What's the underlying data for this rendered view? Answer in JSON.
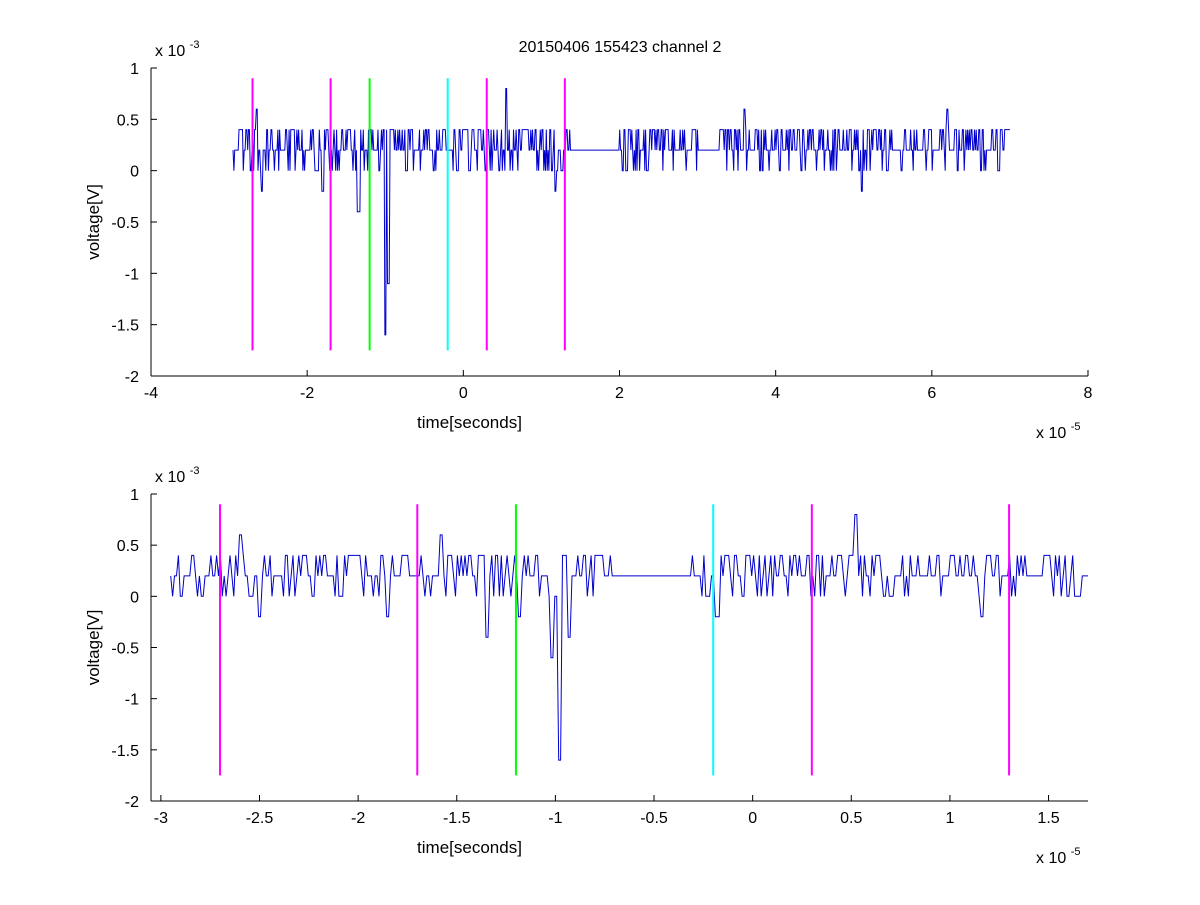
{
  "figure": {
    "title": "20150406 155423 channel 2"
  },
  "chart_data": [
    {
      "type": "line",
      "title": "20150406 155423 channel 2",
      "xlabel": "time[seconds]",
      "ylabel": "voltage[V]",
      "x_exponent": "x 10",
      "x_exponent_power": "-5",
      "y_exponent": "x 10",
      "y_exponent_power": "-3",
      "xlim": [
        -4,
        8
      ],
      "ylim": [
        -2,
        1
      ],
      "xticks": [
        -4,
        -2,
        0,
        2,
        4,
        6,
        8
      ],
      "xtick_labels": [
        "-4",
        "-2",
        "0",
        "2",
        "4",
        "6",
        "8"
      ],
      "yticks": [
        -2,
        -1.5,
        -1,
        -0.5,
        0,
        0.5,
        1
      ],
      "ytick_labels": [
        "-2",
        "-1.5",
        "-1",
        "-0.5",
        "0",
        "0.5",
        "1"
      ],
      "grid": false,
      "markers": [
        {
          "x": -2.7,
          "color": "#ff00ff"
        },
        {
          "x": -1.7,
          "color": "#ff00ff"
        },
        {
          "x": -1.2,
          "color": "#00ff00"
        },
        {
          "x": -0.2,
          "color": "#00ffff"
        },
        {
          "x": 0.3,
          "color": "#ff00ff"
        },
        {
          "x": 1.3,
          "color": "#ff00ff"
        }
      ],
      "marker_range": [
        -1.75,
        0.9
      ],
      "signal": {
        "color": "#0000cc",
        "x_start": -2.95,
        "x_end": 7.0,
        "baseline": 0.2,
        "spikes": [
          {
            "x": -2.9,
            "y": 0.2
          },
          {
            "x": -2.65,
            "y": 0.6
          },
          {
            "x": -2.58,
            "y": -0.2
          },
          {
            "x": -1.8,
            "y": -0.2
          },
          {
            "x": -1.35,
            "y": -0.4
          },
          {
            "x": -1.0,
            "y": -1.6
          },
          {
            "x": -0.96,
            "y": -1.1
          },
          {
            "x": 0.55,
            "y": 0.8
          },
          {
            "x": 1.18,
            "y": -0.2
          },
          {
            "x": 3.6,
            "y": 0.6
          },
          {
            "x": 5.1,
            "y": -0.2
          },
          {
            "x": 6.2,
            "y": 0.6
          },
          {
            "x": 7.0,
            "y": 0.4
          }
        ]
      }
    },
    {
      "type": "line",
      "xlabel": "time[seconds]",
      "ylabel": "voltage[V]",
      "x_exponent": "x 10",
      "x_exponent_power": "-5",
      "y_exponent": "x 10",
      "y_exponent_power": "-3",
      "xlim": [
        -3.05,
        1.7
      ],
      "ylim": [
        -2,
        1
      ],
      "xticks": [
        -3,
        -2.5,
        -2,
        -1.5,
        -1,
        -0.5,
        0,
        0.5,
        1,
        1.5
      ],
      "xtick_labels": [
        "-3",
        "-2.5",
        "-2",
        "-1.5",
        "-1",
        "-0.5",
        "0",
        "0.5",
        "1",
        "1.5"
      ],
      "yticks": [
        -2,
        -1.5,
        -1,
        -0.5,
        0,
        0.5,
        1
      ],
      "ytick_labels": [
        "-2",
        "-1.5",
        "-1",
        "-0.5",
        "0",
        "0.5",
        "1"
      ],
      "grid": false,
      "markers": [
        {
          "x": -2.7,
          "color": "#ff00ff"
        },
        {
          "x": -1.7,
          "color": "#ff00ff"
        },
        {
          "x": -1.2,
          "color": "#00ff00"
        },
        {
          "x": -0.2,
          "color": "#00ffff"
        },
        {
          "x": 0.3,
          "color": "#ff00ff"
        },
        {
          "x": 1.3,
          "color": "#ff00ff"
        }
      ],
      "marker_range": [
        -1.75,
        0.9
      ],
      "signal": {
        "color": "#0000cc",
        "x_start": -2.95,
        "x_end": 1.7,
        "baseline": 0.2,
        "spikes": [
          {
            "x": -2.9,
            "y": 0.0
          },
          {
            "x": -2.6,
            "y": 0.6
          },
          {
            "x": -2.5,
            "y": -0.2
          },
          {
            "x": -1.85,
            "y": -0.2
          },
          {
            "x": -1.58,
            "y": 0.6
          },
          {
            "x": -1.35,
            "y": -0.4
          },
          {
            "x": -1.18,
            "y": -0.2
          },
          {
            "x": -1.02,
            "y": -0.6
          },
          {
            "x": -0.98,
            "y": -1.6
          },
          {
            "x": -0.93,
            "y": -0.4
          },
          {
            "x": -0.18,
            "y": -0.2
          },
          {
            "x": 0.52,
            "y": 0.8
          },
          {
            "x": 1.16,
            "y": -0.2
          },
          {
            "x": 1.6,
            "y": 0.0
          }
        ]
      }
    }
  ]
}
